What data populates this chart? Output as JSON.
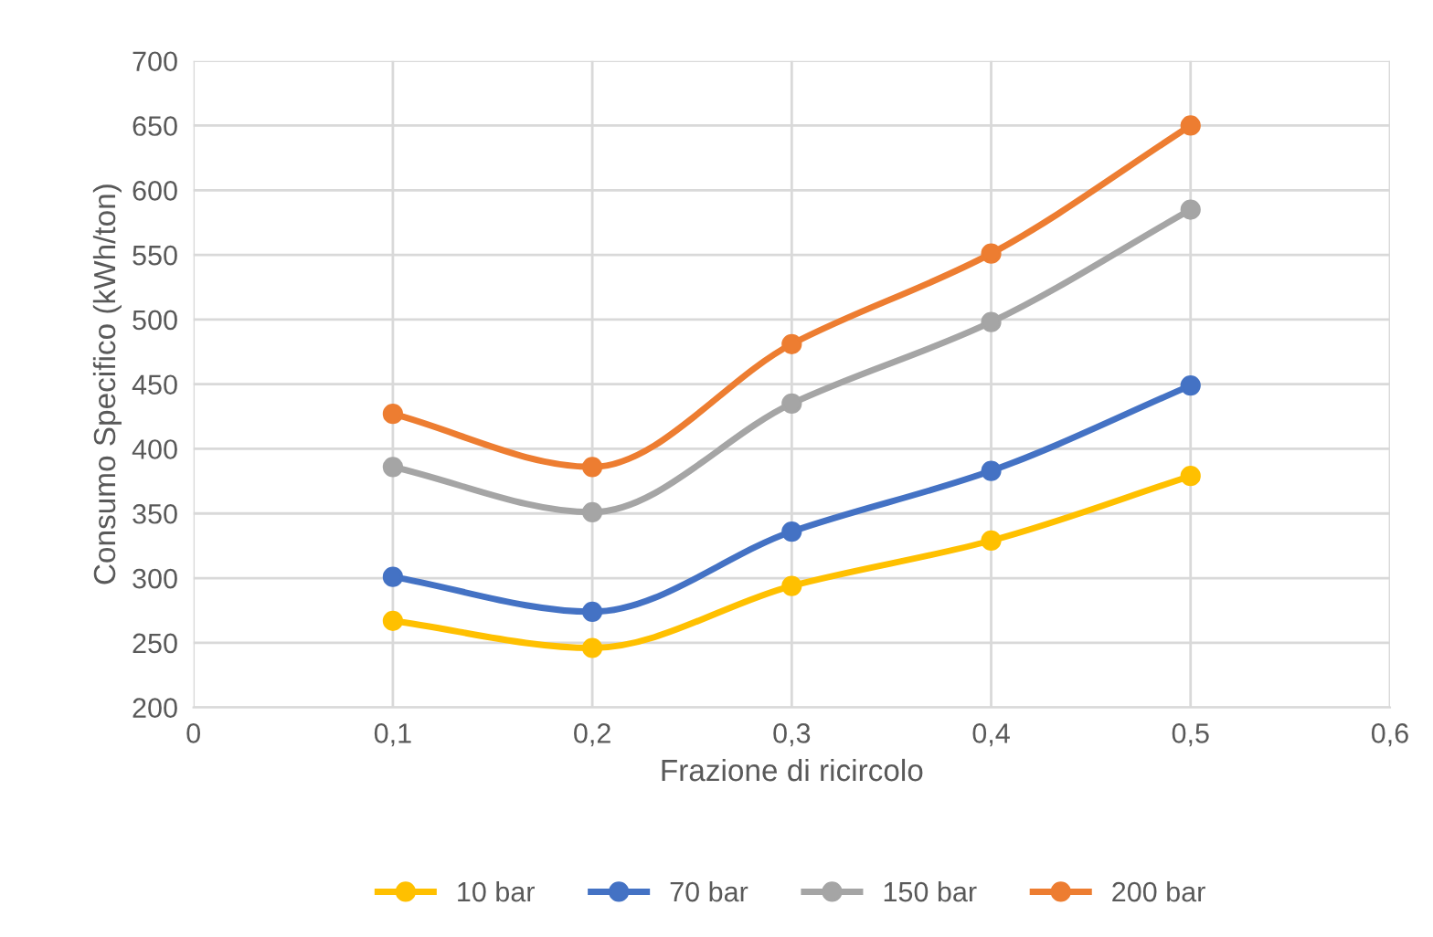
{
  "chart_data": {
    "type": "line",
    "xlabel": "Frazione di ricircolo",
    "ylabel": "Consumo Specifico (kWh/ton)",
    "x": [
      0.1,
      0.2,
      0.3,
      0.4,
      0.5
    ],
    "series": [
      {
        "name": "10 bar",
        "color": "#ffc000",
        "values": [
          267,
          246,
          294,
          329,
          379
        ]
      },
      {
        "name": "70 bar",
        "color": "#4472c4",
        "values": [
          301,
          274,
          336,
          383,
          449
        ]
      },
      {
        "name": "150 bar",
        "color": "#a5a5a5",
        "values": [
          386,
          351,
          435,
          498,
          585
        ]
      },
      {
        "name": "200 bar",
        "color": "#ed7d31",
        "values": [
          427,
          386,
          481,
          551,
          650
        ]
      }
    ],
    "xlim": [
      0,
      0.6
    ],
    "ylim": [
      200,
      700
    ],
    "xticks": [
      0,
      {
        "value": 0.1,
        "label": "0,1"
      },
      {
        "value": 0.2,
        "label": "0,2"
      },
      {
        "value": 0.3,
        "label": "0,3"
      },
      {
        "value": 0.4,
        "label": "0,4"
      },
      {
        "value": 0.5,
        "label": "0,5"
      },
      {
        "value": 0.6,
        "label": "0,6"
      }
    ],
    "yticks": [
      200,
      250,
      300,
      350,
      400,
      450,
      500,
      550,
      600,
      650,
      700
    ],
    "grid": true,
    "legend": "bottom",
    "marker": "circle",
    "line_style": "solid"
  }
}
